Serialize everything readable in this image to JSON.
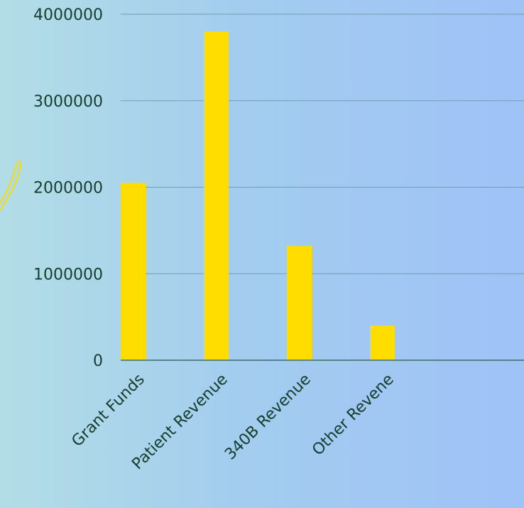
{
  "chart_data": {
    "type": "bar",
    "categories": [
      "Grant Funds",
      "Patient Revenue",
      "340B Revenue",
      "Other Revene"
    ],
    "values": [
      2050000,
      3800000,
      1320000,
      400000
    ],
    "ylim": [
      0,
      4000000
    ],
    "yticks": [
      "0",
      "1000000",
      "2000000",
      "3000000",
      "4000000"
    ],
    "grid": true,
    "colors": {
      "bar": "#ffdd00",
      "accent_scribble": "#f2dc1a"
    }
  }
}
